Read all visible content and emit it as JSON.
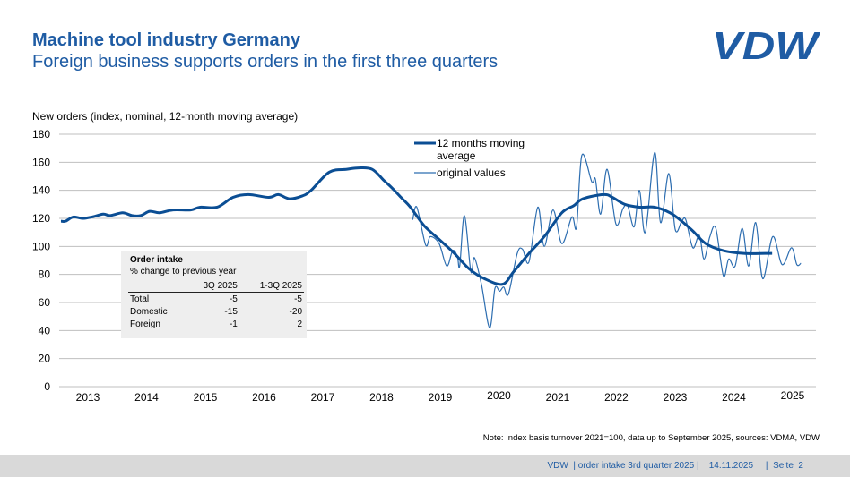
{
  "header": {
    "title": "Machine tool industry Germany",
    "subtitle": "Foreign business supports orders in the first three quarters",
    "logo_text": "VDW"
  },
  "colors": {
    "brand": "#1f5ca4",
    "ma_line": "#0b4e94",
    "original_line": "#2c6db0",
    "grid": "#bfbfbf",
    "footer_bg": "#d9d9d9"
  },
  "order_table": {
    "title": "Order intake",
    "subtitle": "% change to previous year",
    "columns": [
      "",
      "3Q 2025",
      "1-3Q 2025"
    ],
    "rows": [
      [
        "Total",
        "-5",
        "-5"
      ],
      [
        "Domestic",
        "-15",
        "-20"
      ],
      [
        "Foreign",
        "-1",
        "2"
      ]
    ]
  },
  "note": "Note: Index basis turnover 2021=100, data up to September 2025, sources: VDMA, VDW",
  "footer": {
    "text": "VDW  | order intake 3rd quarter 2025 |    14.11.2025     |  Seite  2"
  },
  "chart_data": {
    "type": "line",
    "title": "New orders (index, nominal, 12-month moving average)",
    "ylim": [
      0,
      180
    ],
    "yticks": [
      0,
      20,
      40,
      60,
      80,
      100,
      120,
      140,
      160,
      180
    ],
    "xticks": [
      "2013",
      "2014",
      "2015",
      "2016",
      "2017",
      "2018",
      "2019",
      "2020",
      "2021",
      "2022",
      "2023",
      "2024",
      "2025"
    ],
    "grid": true,
    "legend_position": "top-center",
    "series": [
      {
        "name": "12 months moving average",
        "points": [
          [
            2013.03,
            118
          ],
          [
            2013.11,
            118
          ],
          [
            2013.24,
            121
          ],
          [
            2013.4,
            120
          ],
          [
            2013.56,
            121
          ],
          [
            2013.75,
            123
          ],
          [
            2013.87,
            122
          ],
          [
            2014.08,
            124
          ],
          [
            2014.24,
            122
          ],
          [
            2014.39,
            122
          ],
          [
            2014.54,
            125
          ],
          [
            2014.71,
            124
          ],
          [
            2014.94,
            126
          ],
          [
            2015.24,
            126
          ],
          [
            2015.4,
            128
          ],
          [
            2015.69,
            128
          ],
          [
            2015.96,
            135
          ],
          [
            2016.22,
            137
          ],
          [
            2016.57,
            135
          ],
          [
            2016.73,
            137
          ],
          [
            2016.92,
            134
          ],
          [
            2017.14,
            136
          ],
          [
            2017.29,
            140
          ],
          [
            2017.6,
            153
          ],
          [
            2017.9,
            155
          ],
          [
            2018.1,
            156
          ],
          [
            2018.33,
            155
          ],
          [
            2018.53,
            147
          ],
          [
            2018.66,
            142
          ],
          [
            2018.82,
            135
          ],
          [
            2018.98,
            128
          ],
          [
            2019.21,
            115
          ],
          [
            2019.47,
            105
          ],
          [
            2019.73,
            95
          ],
          [
            2019.98,
            84
          ],
          [
            2020.24,
            77
          ],
          [
            2020.55,
            73
          ],
          [
            2020.74,
            82
          ],
          [
            2021.0,
            95
          ],
          [
            2021.26,
            107
          ],
          [
            2021.56,
            124
          ],
          [
            2021.76,
            129
          ],
          [
            2021.92,
            134
          ],
          [
            2022.27,
            137
          ],
          [
            2022.42,
            135
          ],
          [
            2022.63,
            130
          ],
          [
            2022.88,
            128
          ],
          [
            2023.14,
            128
          ],
          [
            2023.4,
            124
          ],
          [
            2023.6,
            118
          ],
          [
            2023.79,
            111
          ],
          [
            2024.01,
            102
          ],
          [
            2024.31,
            97
          ],
          [
            2024.66,
            95
          ],
          [
            2025.02,
            95
          ],
          [
            2025.14,
            95
          ]
        ]
      },
      {
        "name": "original values",
        "points": [
          [
            2019.02,
            119
          ],
          [
            2019.09,
            128
          ],
          [
            2019.24,
            101
          ],
          [
            2019.32,
            107
          ],
          [
            2019.47,
            102
          ],
          [
            2019.6,
            86
          ],
          [
            2019.7,
            97
          ],
          [
            2019.78,
            93
          ],
          [
            2019.82,
            86
          ],
          [
            2019.9,
            122
          ],
          [
            2020.01,
            82
          ],
          [
            2020.07,
            92
          ],
          [
            2020.19,
            73
          ],
          [
            2020.33,
            42
          ],
          [
            2020.42,
            70
          ],
          [
            2020.5,
            68
          ],
          [
            2020.57,
            71
          ],
          [
            2020.65,
            66
          ],
          [
            2020.8,
            95
          ],
          [
            2020.89,
            98
          ],
          [
            2021.0,
            89
          ],
          [
            2021.15,
            128
          ],
          [
            2021.26,
            100
          ],
          [
            2021.41,
            126
          ],
          [
            2021.56,
            102
          ],
          [
            2021.73,
            121
          ],
          [
            2021.81,
            114
          ],
          [
            2021.9,
            165
          ],
          [
            2022.07,
            146
          ],
          [
            2022.13,
            148
          ],
          [
            2022.22,
            123
          ],
          [
            2022.33,
            155
          ],
          [
            2022.48,
            116
          ],
          [
            2022.6,
            127
          ],
          [
            2022.68,
            129
          ],
          [
            2022.79,
            114
          ],
          [
            2022.88,
            140
          ],
          [
            2022.98,
            110
          ],
          [
            2023.14,
            167
          ],
          [
            2023.24,
            117
          ],
          [
            2023.38,
            152
          ],
          [
            2023.49,
            112
          ],
          [
            2023.6,
            118
          ],
          [
            2023.67,
            119
          ],
          [
            2023.79,
            99
          ],
          [
            2023.9,
            108
          ],
          [
            2023.98,
            91
          ],
          [
            2024.08,
            107
          ],
          [
            2024.18,
            113
          ],
          [
            2024.31,
            79
          ],
          [
            2024.4,
            91
          ],
          [
            2024.51,
            86
          ],
          [
            2024.63,
            113
          ],
          [
            2024.74,
            86
          ],
          [
            2024.86,
            117
          ],
          [
            2024.98,
            77
          ],
          [
            2025.15,
            107
          ],
          [
            2025.31,
            87
          ],
          [
            2025.47,
            99
          ],
          [
            2025.56,
            87
          ],
          [
            2025.63,
            88
          ]
        ]
      }
    ]
  }
}
